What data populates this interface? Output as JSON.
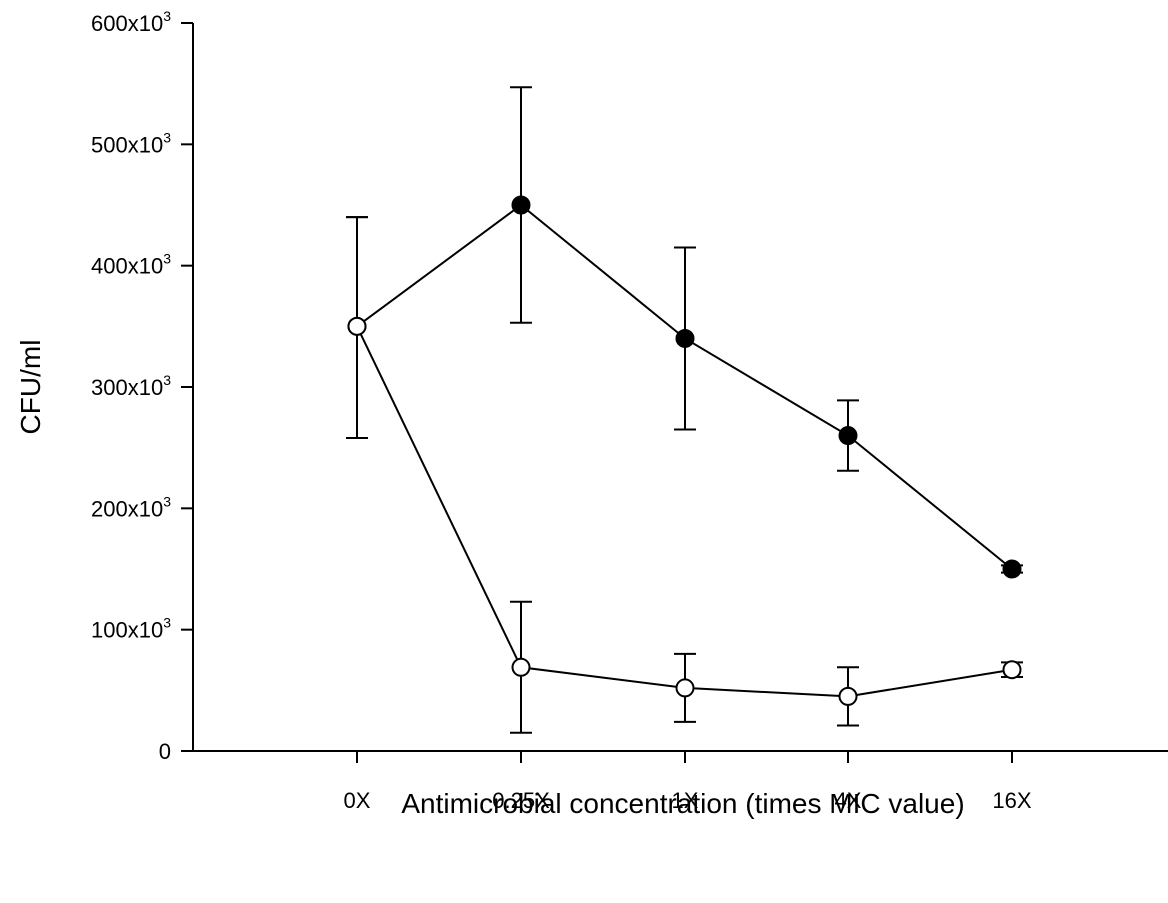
{
  "chart_data": {
    "type": "line",
    "xlabel": "Antimicrobial concentration (times MIC value)",
    "ylabel": "CFU/ml",
    "categories": [
      "0X",
      "0.25X",
      "1X",
      "4X",
      "16X"
    ],
    "ylim": [
      0,
      600000
    ],
    "yticks": [
      {
        "value": 0,
        "mantissa": "0",
        "exp": ""
      },
      {
        "value": 100000,
        "mantissa": "100x10",
        "exp": "3"
      },
      {
        "value": 200000,
        "mantissa": "200x10",
        "exp": "3"
      },
      {
        "value": 300000,
        "mantissa": "300x10",
        "exp": "3"
      },
      {
        "value": 400000,
        "mantissa": "400x10",
        "exp": "3"
      },
      {
        "value": 500000,
        "mantissa": "500x10",
        "exp": "3"
      },
      {
        "value": 600000,
        "mantissa": "600x10",
        "exp": "3"
      }
    ],
    "grid": false,
    "legend": "none",
    "series": [
      {
        "marker": "filled-circle",
        "color": "#000000",
        "points": [
          {
            "x": "0X",
            "y": 350000,
            "lo": 258000,
            "hi": 440000
          },
          {
            "x": "0.25X",
            "y": 450000,
            "lo": 353000,
            "hi": 547000
          },
          {
            "x": "1X",
            "y": 340000,
            "lo": 265000,
            "hi": 415000
          },
          {
            "x": "4X",
            "y": 260000,
            "lo": 231000,
            "hi": 289000
          },
          {
            "x": "16X",
            "y": 150000,
            "lo": 147000,
            "hi": 153000
          }
        ]
      },
      {
        "marker": "open-circle",
        "color": "#000000",
        "points": [
          {
            "x": "0X",
            "y": 350000,
            "lo": 258000,
            "hi": 440000
          },
          {
            "x": "0.25X",
            "y": 69000,
            "lo": 15000,
            "hi": 123000
          },
          {
            "x": "1X",
            "y": 52000,
            "lo": 24000,
            "hi": 80000
          },
          {
            "x": "4X",
            "y": 45000,
            "lo": 21000,
            "hi": 69000
          },
          {
            "x": "16X",
            "y": 67000,
            "lo": 61000,
            "hi": 73000
          }
        ]
      }
    ]
  }
}
